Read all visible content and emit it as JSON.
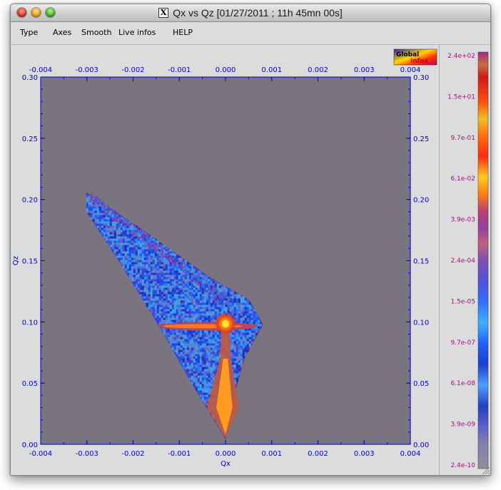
{
  "window": {
    "title": "Qx vs Qz [01/27/2011 ; 11h 45mn 00s]",
    "x_icon": "X"
  },
  "menu": {
    "items": [
      "Type",
      "Axes",
      "Smooth",
      "Live infos",
      "HELP"
    ]
  },
  "logo": {
    "line1": "Global",
    "line2": "infos"
  },
  "colors": {
    "background_plot": "#797480",
    "axis": "#0000cc",
    "colorbar_label": "#a01080"
  },
  "chart_data": {
    "type": "heatmap",
    "xlabel": "Qx",
    "ylabel": "Qz",
    "xlim": [
      -0.004,
      0.004
    ],
    "ylim": [
      0.0,
      0.3
    ],
    "x_ticks": [
      "-0.004",
      "-0.003",
      "-0.002",
      "-0.001",
      "0.000",
      "0.001",
      "0.002",
      "0.003",
      "0.004"
    ],
    "y_ticks": [
      "0.00",
      "0.05",
      "0.10",
      "0.15",
      "0.20",
      "0.25",
      "0.30"
    ],
    "colorbar": {
      "scale": "log",
      "labels": [
        "2.4e+02",
        "1.5e+01",
        "9.7e-01",
        "6.1e-02",
        "3.9e-03",
        "2.4e-04",
        "1.5e-05",
        "9.7e-07",
        "6.1e-08",
        "3.9e-09",
        "2.4e-10"
      ]
    },
    "region": {
      "outline": [
        [
          -0.003,
          0.205
        ],
        [
          -0.0018,
          0.175
        ],
        [
          -0.0003,
          0.135
        ],
        [
          0.0005,
          0.118
        ],
        [
          0.0008,
          0.098
        ],
        [
          0.0004,
          0.07
        ],
        [
          0.0001,
          0.03
        ],
        [
          0.0,
          0.005
        ],
        [
          -0.0004,
          0.03
        ],
        [
          -0.0008,
          0.055
        ],
        [
          -0.0014,
          0.095
        ],
        [
          -0.0023,
          0.15
        ],
        [
          -0.003,
          0.19
        ]
      ],
      "streak": {
        "x_from": -0.00145,
        "x_to": 0.0007,
        "y": 0.0965
      },
      "peak": {
        "x": 0.0,
        "y": 0.0985
      },
      "vertical_rod": {
        "x": 0.0,
        "y_from": 0.005,
        "y_to": 0.098
      }
    }
  }
}
